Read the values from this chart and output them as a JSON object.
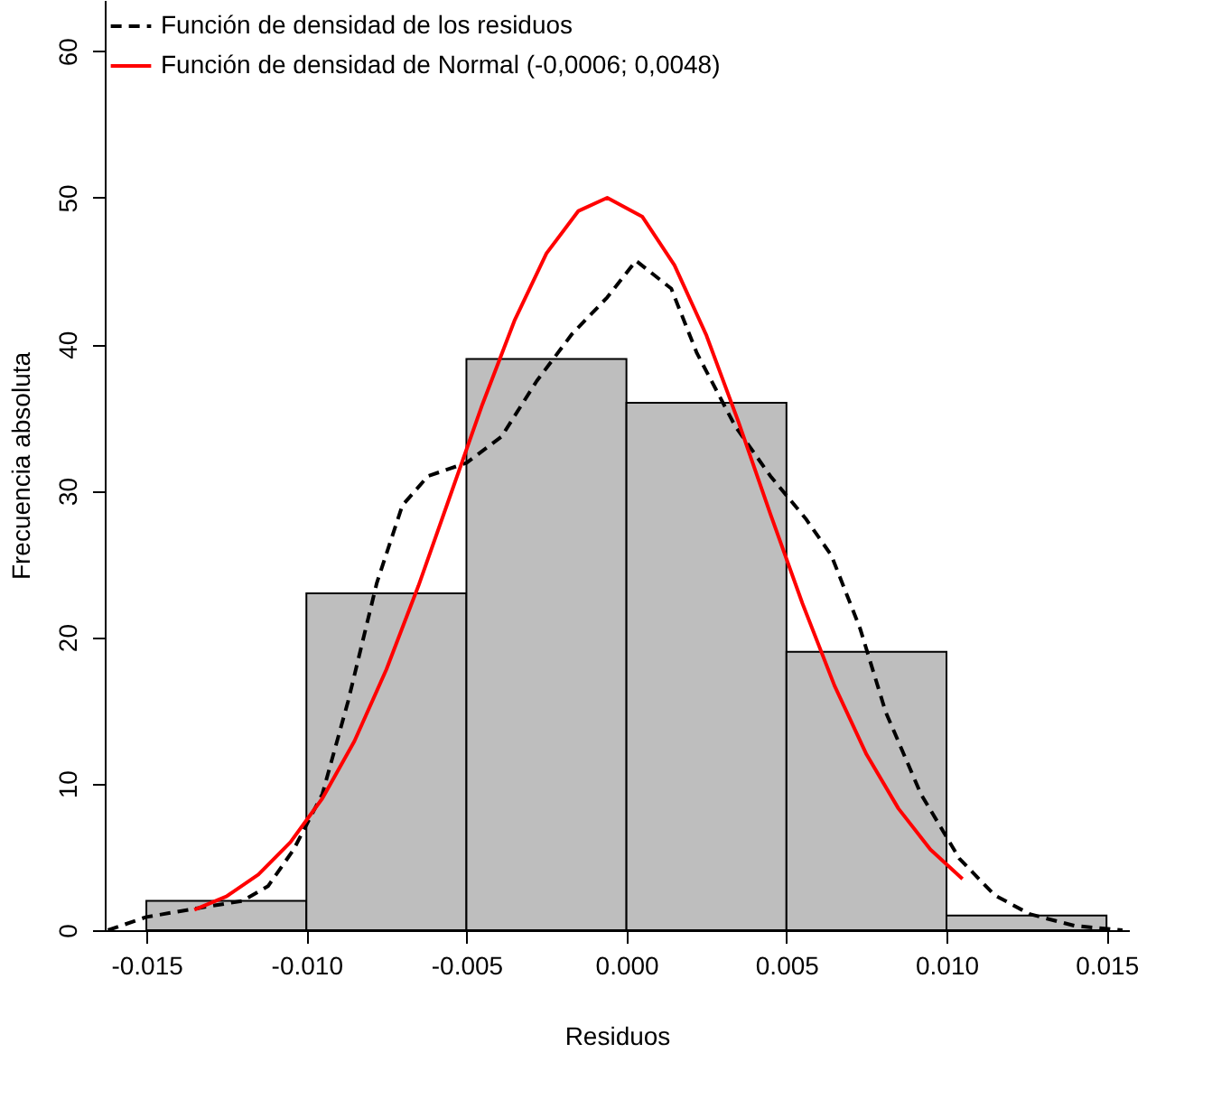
{
  "chart_data": {
    "type": "histogram",
    "xlabel": "Residuos",
    "ylabel": "Frecuencia absoluta",
    "bins": [
      -0.015,
      -0.01,
      -0.005,
      0,
      0.005,
      0.01,
      0.015
    ],
    "values": [
      2,
      23,
      39,
      36,
      19,
      1
    ],
    "color": "#bebebe",
    "xlim": [
      -0.0163,
      0.0157
    ],
    "ylim": [
      0,
      63.5
    ],
    "xticks": [
      {
        "value": -0.015,
        "label": "-0.015"
      },
      {
        "value": -0.01,
        "label": "-0.010"
      },
      {
        "value": -0.005,
        "label": "-0.005"
      },
      {
        "value": 0,
        "label": "0.000"
      },
      {
        "value": 0.005,
        "label": "0.005"
      },
      {
        "value": 0.01,
        "label": "0.010"
      },
      {
        "value": 0.015,
        "label": "0.015"
      }
    ],
    "yticks": [
      0,
      10,
      20,
      30,
      40,
      50,
      60
    ],
    "legend": "top left",
    "grid": false,
    "series": [
      {
        "type": "line",
        "name": "Función de densidad de los residuos",
        "color": "#000000",
        "line_style": "dashed",
        "x": [
          -0.0162,
          -0.015,
          -0.0134,
          -0.012,
          -0.0112,
          -0.0104,
          -0.0095,
          -0.0087,
          -0.0078,
          -0.007,
          -0.0062,
          -0.005,
          -0.0039,
          -0.0028,
          -0.0017,
          -0.0006,
          0.0003,
          0.0014,
          0.0022,
          0.0034,
          0.0045,
          0.0056,
          0.0064,
          0.0073,
          0.0081,
          0.0092,
          0.0104,
          0.0115,
          0.0126,
          0.014,
          0.0155
        ],
        "values": [
          0,
          0.9,
          1.5,
          2,
          3,
          5.5,
          9.3,
          15.6,
          23.7,
          29,
          31,
          31.9,
          33.7,
          37.5,
          40.7,
          43.2,
          45.7,
          43.8,
          39.4,
          34.4,
          31,
          28.1,
          25.6,
          20.6,
          14.9,
          9.3,
          4.9,
          2.4,
          1.1,
          0.3,
          0
        ]
      },
      {
        "type": "line",
        "name": "Función de densidad de Normal (-0,0006; 0,0048)",
        "color": "#ff0000",
        "line_style": "solid",
        "x": [
          -0.0135,
          -0.0125,
          -0.0115,
          -0.0105,
          -0.0095,
          -0.0085,
          -0.0075,
          -0.0065,
          -0.0055,
          -0.0045,
          -0.0035,
          -0.0025,
          -0.0015,
          -0.0006,
          0.0005,
          0.0015,
          0.0025,
          0.0035,
          0.0045,
          0.0055,
          0.0065,
          0.0075,
          0.0085,
          0.0095,
          0.0105
        ],
        "values": [
          1.4,
          2.3,
          3.8,
          6,
          9,
          12.9,
          17.8,
          23.5,
          29.7,
          35.9,
          41.6,
          46.2,
          49.1,
          50,
          48.7,
          45.4,
          40.6,
          34.7,
          28.4,
          22.3,
          16.7,
          12,
          8.3,
          5.5,
          3.5
        ]
      }
    ]
  }
}
